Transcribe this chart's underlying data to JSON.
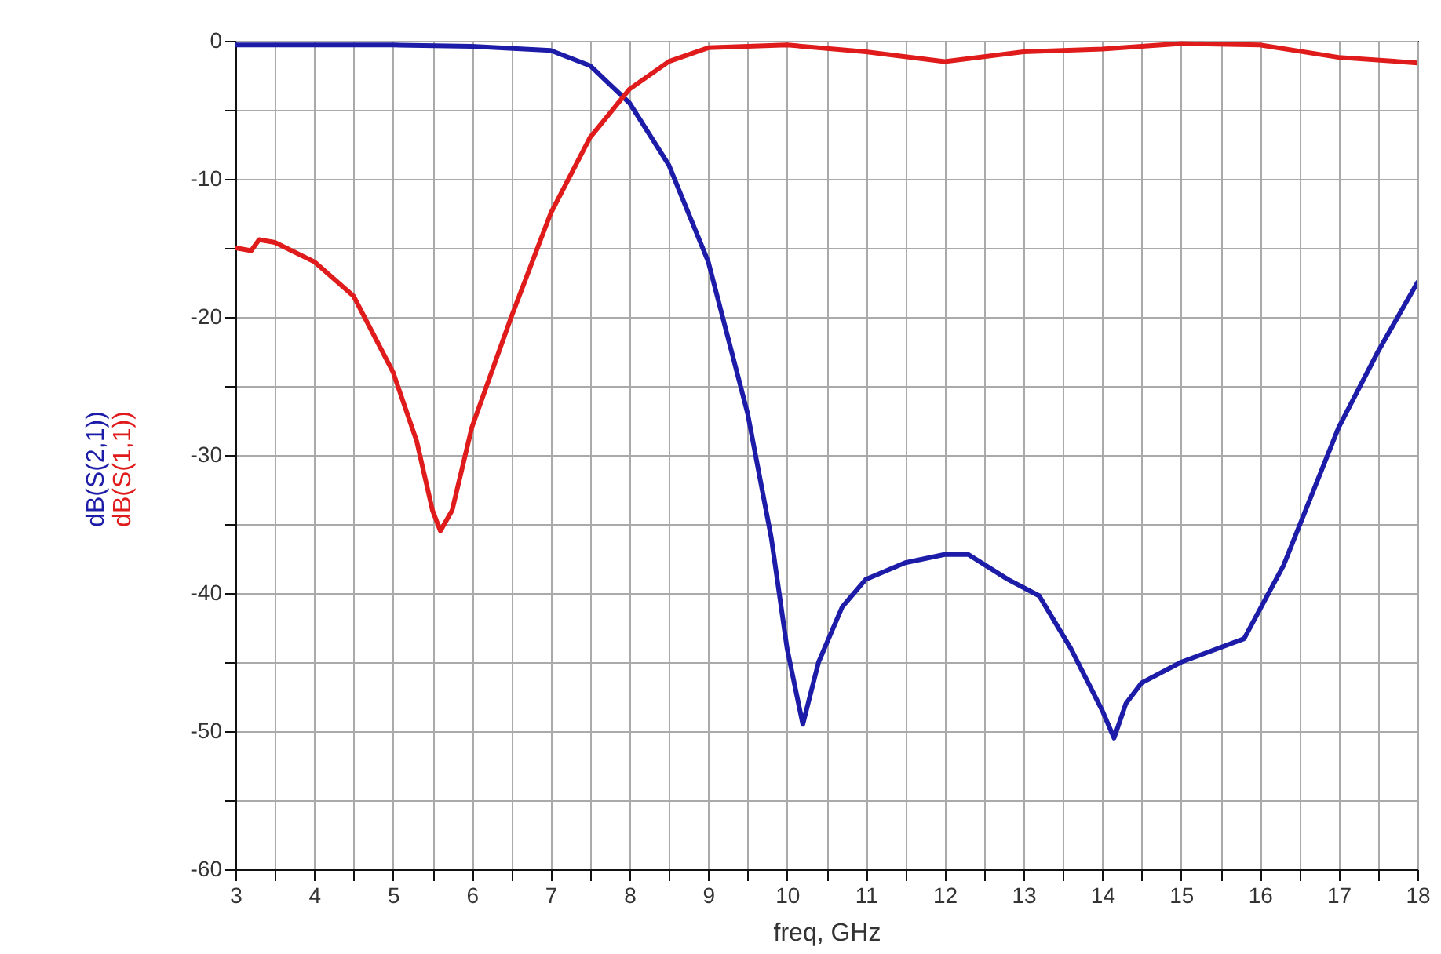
{
  "chart_data": {
    "type": "line",
    "xlabel": "freq, GHz",
    "xlim": [
      3,
      18
    ],
    "xticks": [
      3,
      {
        "value": 3.5,
        "label": null
      },
      4,
      {
        "value": 4.5,
        "label": null
      },
      5,
      {
        "value": 5.5,
        "label": null
      },
      6,
      {
        "value": 6.5,
        "label": null
      },
      7,
      {
        "value": 7.5,
        "label": null
      },
      8,
      {
        "value": 8.5,
        "label": null
      },
      9,
      {
        "value": 9.5,
        "label": null
      },
      10,
      {
        "value": 10.5,
        "label": null
      },
      11,
      {
        "value": 11.5,
        "label": null
      },
      12,
      {
        "value": 12.5,
        "label": null
      },
      13,
      {
        "value": 13.5,
        "label": null
      },
      14,
      {
        "value": 14.5,
        "label": null
      },
      15,
      {
        "value": 15.5,
        "label": null
      },
      16,
      {
        "value": 16.5,
        "label": null
      },
      17,
      {
        "value": 17.5,
        "label": null
      },
      18
    ],
    "ylim": [
      -60,
      0
    ],
    "yticks": [
      -60,
      {
        "value": -55,
        "label": null
      },
      -50,
      {
        "value": -45,
        "label": null
      },
      -40,
      {
        "value": -35,
        "label": null
      },
      -30,
      {
        "value": -25,
        "label": null
      },
      -20,
      {
        "value": -15,
        "label": null
      },
      -10,
      {
        "value": -5,
        "label": null
      },
      0
    ],
    "grid": true,
    "legend": false,
    "series": [
      {
        "name": "dB(S(2,1))",
        "color": "#1c1ca8",
        "x": [
          3,
          5,
          6,
          7,
          7.5,
          8,
          8.5,
          9,
          9.5,
          9.8,
          10,
          10.2,
          10.4,
          10.7,
          11,
          11.5,
          12,
          12.3,
          12.8,
          13.2,
          13.6,
          14,
          14.15,
          14.3,
          14.5,
          15,
          15.8,
          16.3,
          17,
          17.5,
          18
        ],
        "values": [
          -0.3,
          -0.3,
          -0.4,
          -0.7,
          -1.8,
          -4.5,
          -9,
          -16,
          -27,
          -36,
          -44,
          -49.5,
          -45,
          -41,
          -39,
          -37.8,
          -37.2,
          -37.2,
          -39,
          -40.2,
          -44,
          -48.5,
          -50.5,
          -48,
          -46.5,
          -45,
          -43.3,
          -38,
          -28,
          -22.5,
          -17.5
        ]
      },
      {
        "name": "dB(S(1,1))",
        "color": "#e01b1b",
        "x": [
          3,
          3.2,
          3.3,
          3.5,
          4,
          4.5,
          5,
          5.3,
          5.5,
          5.6,
          5.75,
          6,
          6.5,
          7,
          7.5,
          8,
          8.5,
          9,
          10,
          11,
          12,
          13,
          14,
          15,
          16,
          17,
          18
        ],
        "values": [
          -15,
          -15.2,
          -14.4,
          -14.6,
          -16,
          -18.5,
          -24,
          -29,
          -34,
          -35.5,
          -34,
          -28,
          -20,
          -12.5,
          -7,
          -3.5,
          -1.5,
          -0.5,
          -0.3,
          -0.8,
          -1.5,
          -0.8,
          -0.6,
          -0.2,
          -0.3,
          -1.2,
          -1.6
        ]
      }
    ]
  }
}
